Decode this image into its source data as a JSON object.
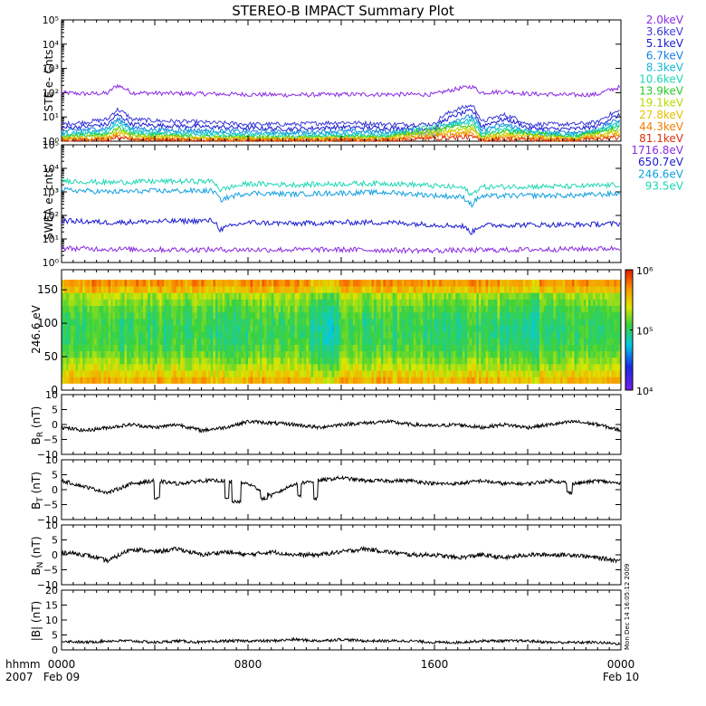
{
  "title": "STEREO-B IMPACT Summary Plot",
  "colors": {
    "energy_purple": "#8a2be2",
    "energy_blue": "#1a1ad0",
    "energy_cyan": "#13b7d6",
    "energy_teal": "#1fd7b5",
    "energy_green": "#28c828",
    "energy_yellow": "#d8d800",
    "energy_orange": "#f08000",
    "energy_red": "#e03010",
    "mag_trace": "#000000"
  },
  "chart_data": [
    {
      "type": "line",
      "panel": "ste",
      "ylabel": "STE e- Cnts",
      "yscale": "log",
      "ylim": [
        1,
        100000
      ],
      "yticks": [
        "10⁰",
        "10¹",
        "10²",
        "10³",
        "10⁴",
        "10⁵"
      ],
      "x_range_hours": [
        0,
        24
      ],
      "series": [
        {
          "name": "2.0keV",
          "color": "#8a2be2",
          "x": [
            0,
            1,
            2,
            2.4,
            3,
            4,
            6,
            8,
            10,
            12,
            14,
            16,
            17.6,
            18,
            19,
            20,
            21,
            22,
            23,
            24
          ],
          "y": [
            100,
            90,
            95,
            200,
            100,
            95,
            90,
            85,
            80,
            85,
            85,
            85,
            180,
            100,
            110,
            90,
            85,
            80,
            85,
            170
          ]
        },
        {
          "name": "3.6keV",
          "color": "#3a3ad8",
          "x": [
            0,
            1,
            2,
            2.4,
            3,
            4,
            6,
            8,
            10,
            12,
            14,
            16,
            17.6,
            18,
            19,
            20,
            21,
            22,
            23,
            24
          ],
          "y": [
            5,
            6,
            8,
            20,
            8,
            7,
            6,
            5,
            5,
            6,
            5,
            5,
            30,
            6,
            12,
            5,
            5,
            5,
            6,
            18
          ]
        },
        {
          "name": "5.1keV",
          "color": "#1a1ad0",
          "x": [
            0,
            1,
            2,
            2.4,
            3,
            4,
            6,
            8,
            10,
            12,
            14,
            16,
            17.6,
            18,
            19,
            20,
            21,
            22,
            23,
            24
          ],
          "y": [
            3.5,
            4,
            5,
            12,
            5,
            4.5,
            4,
            3.5,
            3.2,
            3.8,
            3.5,
            3.3,
            18,
            4,
            8,
            3.5,
            3.2,
            3.2,
            4,
            12
          ]
        },
        {
          "name": "6.7keV",
          "color": "#1480e0",
          "x": [
            0,
            1,
            2,
            2.4,
            3,
            4,
            6,
            8,
            10,
            12,
            14,
            16,
            17.6,
            18,
            19,
            20,
            21,
            22,
            23,
            24
          ],
          "y": [
            2.5,
            3,
            3.5,
            8,
            3.5,
            3,
            2.8,
            2.5,
            2.3,
            2.6,
            2.5,
            2.4,
            11,
            2.8,
            5,
            2.5,
            2.3,
            2.3,
            2.8,
            8
          ]
        },
        {
          "name": "8.3keV",
          "color": "#13b7d6",
          "x": [
            0,
            1,
            2,
            2.4,
            3,
            4,
            6,
            8,
            10,
            12,
            14,
            16,
            17.6,
            18,
            19,
            20,
            21,
            22,
            23,
            24
          ],
          "y": [
            2,
            2.4,
            2.8,
            6,
            2.8,
            2.4,
            2.2,
            2,
            1.9,
            2.1,
            2,
            1.9,
            8,
            2.2,
            4,
            2,
            1.9,
            1.9,
            2.2,
            6
          ]
        },
        {
          "name": "10.6keV",
          "color": "#1fd7b5",
          "x": [
            0,
            2,
            2.4,
            3,
            6,
            10,
            14,
            17.6,
            18,
            19,
            22,
            24
          ],
          "y": [
            1.7,
            2.2,
            4.5,
            2.2,
            1.8,
            1.6,
            1.7,
            6,
            1.8,
            3,
            1.6,
            4.5
          ]
        },
        {
          "name": "13.9keV",
          "color": "#28c828",
          "x": [
            0,
            2,
            2.4,
            3,
            6,
            10,
            14,
            17.6,
            18,
            19,
            22,
            24
          ],
          "y": [
            1.5,
            1.9,
            3.5,
            1.9,
            1.5,
            1.4,
            1.5,
            4.5,
            1.5,
            2.5,
            1.4,
            3.5
          ]
        },
        {
          "name": "19.1keV",
          "color": "#b8d800",
          "x": [
            0,
            2,
            2.4,
            3,
            6,
            10,
            14,
            17.6,
            18,
            19,
            22,
            24
          ],
          "y": [
            1.35,
            1.6,
            2.8,
            1.6,
            1.35,
            1.3,
            1.35,
            3.5,
            1.35,
            2,
            1.3,
            2.8
          ]
        },
        {
          "name": "27.8keV",
          "color": "#e8c000",
          "x": [
            0,
            2,
            2.4,
            3,
            6,
            10,
            14,
            17.6,
            18,
            19,
            22,
            24
          ],
          "y": [
            1.25,
            1.4,
            2.2,
            1.4,
            1.25,
            1.2,
            1.25,
            2.6,
            1.25,
            1.7,
            1.2,
            2.2
          ]
        },
        {
          "name": "44.3keV",
          "color": "#f08000",
          "x": [
            0,
            2,
            2.4,
            3,
            6,
            10,
            14,
            17.6,
            18,
            19,
            22,
            24
          ],
          "y": [
            1.15,
            1.25,
            1.8,
            1.25,
            1.15,
            1.12,
            1.15,
            2,
            1.15,
            1.4,
            1.12,
            1.8
          ]
        },
        {
          "name": "81.1keV",
          "color": "#e03010",
          "x": [
            0,
            2,
            2.4,
            3,
            6,
            10,
            14,
            17.6,
            18,
            19,
            22,
            24
          ],
          "y": [
            1.08,
            1.12,
            1.4,
            1.12,
            1.08,
            1.06,
            1.08,
            1.5,
            1.08,
            1.2,
            1.06,
            1.4
          ]
        }
      ]
    },
    {
      "type": "line",
      "panel": "swea",
      "ylabel": "SWEA e- cnts",
      "yscale": "log",
      "ylim": [
        1,
        100000
      ],
      "yticks": [
        "10⁰",
        "10¹",
        "10²",
        "10³",
        "10⁴",
        "10⁵"
      ],
      "x_range_hours": [
        0,
        24
      ],
      "series": [
        {
          "name": "93.5eV",
          "color": "#1fd7b5",
          "x": [
            0,
            2,
            4,
            6.5,
            6.8,
            8,
            10,
            12,
            14,
            16,
            17.2,
            17.6,
            18,
            20,
            22,
            24
          ],
          "y": [
            3000,
            2500,
            2800,
            2800,
            1200,
            2200,
            2000,
            2200,
            2300,
            1800,
            1500,
            700,
            1600,
            1700,
            1700,
            2000
          ]
        },
        {
          "name": "246.6eV",
          "color": "#13a0e0",
          "x": [
            0,
            2,
            4,
            6.5,
            6.8,
            8,
            10,
            12,
            14,
            16,
            17.2,
            17.6,
            18,
            20,
            22,
            24
          ],
          "y": [
            1200,
            1000,
            1100,
            1100,
            450,
            900,
            800,
            900,
            950,
            700,
            600,
            280,
            650,
            700,
            700,
            850
          ]
        },
        {
          "name": "650.7eV",
          "color": "#1a1ad0",
          "x": [
            0,
            2,
            4,
            6.5,
            6.8,
            8,
            10,
            12,
            14,
            16,
            17.2,
            17.6,
            18,
            20,
            22,
            24
          ],
          "y": [
            60,
            50,
            55,
            60,
            25,
            50,
            45,
            50,
            50,
            40,
            35,
            18,
            38,
            40,
            40,
            45
          ]
        },
        {
          "name": "1716.8eV",
          "color": "#8a2be2",
          "x": [
            0,
            4,
            8,
            12,
            16,
            20,
            24
          ],
          "y": [
            4,
            3.5,
            3.5,
            3.5,
            3.2,
            3.5,
            4
          ]
        }
      ]
    },
    {
      "type": "heatmap",
      "panel": "pitch-angle",
      "ylabel": "246.6 eV",
      "ylim": [
        0,
        180
      ],
      "yticks": [
        "0",
        "50",
        "100",
        "150"
      ],
      "x_range_hours": [
        0,
        24
      ],
      "colorbar": {
        "scale": "log",
        "range": [
          10000,
          1000000
        ],
        "ticks": [
          "10⁴",
          "10⁵",
          "10⁶"
        ]
      }
    },
    {
      "type": "line",
      "panel": "br",
      "ylabel_main": "B",
      "ylabel_sub": "R",
      "ylabel_unit": " (nT)",
      "ylim": [
        -10,
        10
      ],
      "yticks": [
        "10",
        "5",
        "0",
        "−5",
        "−10"
      ],
      "series": [
        {
          "color": "#000000",
          "x": [
            0,
            1,
            2,
            3,
            4,
            5,
            6,
            7,
            8,
            9,
            10,
            11,
            12,
            13,
            14,
            15,
            16,
            17,
            18,
            19,
            20,
            21,
            22,
            23,
            24
          ],
          "y": [
            -1,
            -2,
            -1,
            0,
            -1,
            0,
            -2,
            -1,
            1,
            0.5,
            0,
            -1,
            0,
            0.5,
            1,
            0,
            -0.5,
            0,
            -1,
            0,
            -1,
            0,
            1,
            0,
            -2
          ]
        }
      ]
    },
    {
      "type": "line",
      "panel": "bt",
      "ylabel_main": "B",
      "ylabel_sub": "T",
      "ylabel_unit": " (nT)",
      "ylim": [
        -10,
        10
      ],
      "yticks": [
        "10",
        "5",
        "0",
        "−5",
        "−10"
      ],
      "series": [
        {
          "color": "#000000",
          "x": [
            0,
            1,
            2,
            3,
            4,
            5,
            6,
            7,
            8,
            9,
            10,
            11,
            12,
            13,
            14,
            15,
            16,
            17,
            18,
            19,
            20,
            21,
            22,
            23,
            24
          ],
          "y": [
            3,
            1,
            -1,
            2,
            3,
            2,
            3,
            3,
            2,
            -2,
            2,
            3,
            4,
            3,
            3,
            3,
            2,
            2,
            3,
            2,
            2,
            3,
            2,
            3,
            2
          ]
        }
      ]
    },
    {
      "type": "line",
      "panel": "bn",
      "ylabel_main": "B",
      "ylabel_sub": "N",
      "ylabel_unit": " (nT)",
      "ylim": [
        -10,
        10
      ],
      "yticks": [
        "10",
        "5",
        "0",
        "−5",
        "−10"
      ],
      "series": [
        {
          "color": "#000000",
          "x": [
            0,
            1,
            2,
            3,
            4,
            5,
            6,
            7,
            8,
            9,
            10,
            11,
            12,
            13,
            14,
            15,
            16,
            17,
            18,
            19,
            20,
            21,
            22,
            23,
            24
          ],
          "y": [
            1,
            0,
            -2,
            2,
            1,
            2,
            0,
            1,
            0,
            1,
            0,
            0,
            1,
            2,
            1,
            0,
            0,
            -1,
            0,
            -1,
            0,
            0,
            0,
            -1,
            -2
          ]
        }
      ]
    },
    {
      "type": "line",
      "panel": "bmag",
      "ylabel": "|B| (nT)",
      "ylim": [
        0,
        20
      ],
      "yticks": [
        "20",
        "15",
        "10",
        "5",
        "0"
      ],
      "series": [
        {
          "color": "#000000",
          "x": [
            0,
            1,
            2,
            3,
            4,
            5,
            6,
            7,
            8,
            9,
            10,
            11,
            12,
            13,
            14,
            15,
            16,
            17,
            18,
            19,
            20,
            21,
            22,
            23,
            24
          ],
          "y": [
            3,
            2.5,
            3,
            3,
            2.5,
            3,
            2.5,
            3,
            3,
            3,
            3.5,
            3,
            3.5,
            3,
            3,
            3,
            2.5,
            2.5,
            3,
            3,
            3,
            2.5,
            2.5,
            2.5,
            2
          ]
        }
      ]
    }
  ],
  "time_axis": {
    "row1_label": "hhmm",
    "row2_label": "2007",
    "ticks": [
      {
        "hour": 0,
        "time": "0000",
        "date": "Feb 09"
      },
      {
        "hour": 8,
        "time": "0800",
        "date": ""
      },
      {
        "hour": 16,
        "time": "1600",
        "date": ""
      },
      {
        "hour": 24,
        "time": "0000",
        "date": "Feb 10"
      }
    ]
  },
  "side_note": "Mon Dec 14 16:05:12 2009"
}
